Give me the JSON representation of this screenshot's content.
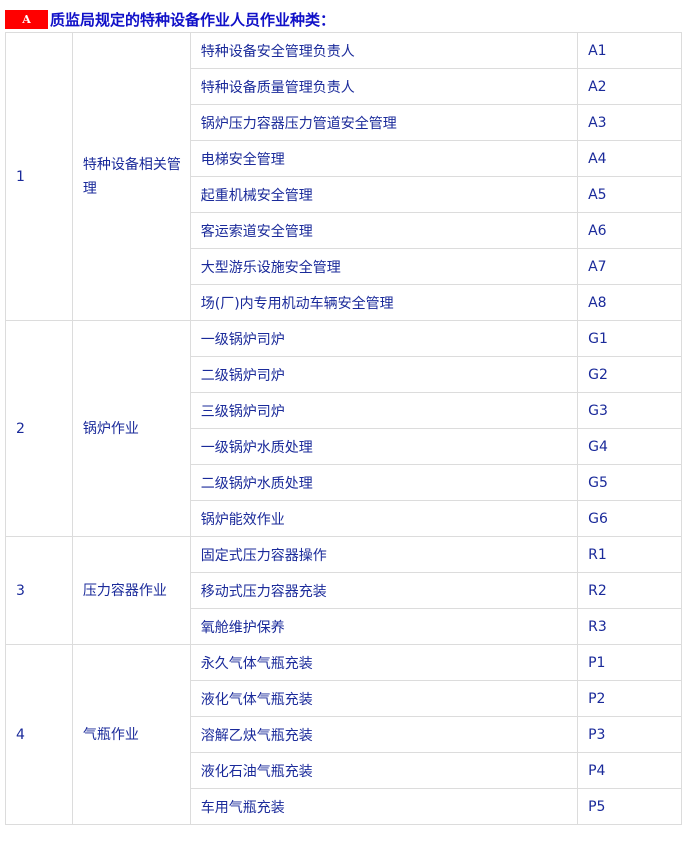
{
  "title": {
    "badge": "A",
    "text": "质监局规定的特种设备作业人员作业种类："
  },
  "groups": [
    {
      "no": "1",
      "category": "特种设备相关管理",
      "items": [
        [
          "特种设备安全管理负责人",
          "A1"
        ],
        [
          "特种设备质量管理负责人",
          "A2"
        ],
        [
          "锅炉压力容器压力管道安全管理",
          "A3"
        ],
        [
          "电梯安全管理",
          "A4"
        ],
        [
          "起重机械安全管理",
          "A5"
        ],
        [
          "客运索道安全管理",
          "A6"
        ],
        [
          "大型游乐设施安全管理",
          "A7"
        ],
        [
          "场(厂)内专用机动车辆安全管理",
          "A8"
        ]
      ]
    },
    {
      "no": "2",
      "category": "锅炉作业",
      "items": [
        [
          "一级锅炉司炉",
          "G1"
        ],
        [
          "二级锅炉司炉",
          "G2"
        ],
        [
          "三级锅炉司炉",
          "G3"
        ],
        [
          "一级锅炉水质处理",
          "G4"
        ],
        [
          "二级锅炉水质处理",
          "G5"
        ],
        [
          "锅炉能效作业",
          "G6"
        ]
      ]
    },
    {
      "no": "3",
      "category": "压力容器作业",
      "items": [
        [
          "固定式压力容器操作",
          "R1"
        ],
        [
          "移动式压力容器充装",
          "R2"
        ],
        [
          "氧舱维护保养",
          "R3"
        ]
      ]
    },
    {
      "no": "4",
      "category": "气瓶作业",
      "items": [
        [
          "永久气体气瓶充装",
          "P1"
        ],
        [
          "液化气体气瓶充装",
          "P2"
        ],
        [
          "溶解乙炔气瓶充装",
          "P3"
        ],
        [
          "液化石油气瓶充装",
          "P4"
        ],
        [
          "车用气瓶充装",
          "P5"
        ]
      ]
    }
  ]
}
